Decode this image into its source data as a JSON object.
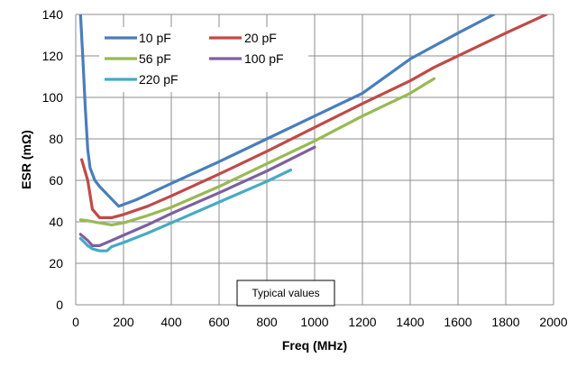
{
  "chart_data": {
    "type": "line",
    "title": "",
    "xlabel": "Freq (MHz)",
    "ylabel": "ESR (mΩ)",
    "xlim": [
      0,
      2000
    ],
    "ylim": [
      0,
      140
    ],
    "xticks": [
      0,
      200,
      400,
      600,
      800,
      1000,
      1200,
      1400,
      1600,
      1800,
      2000
    ],
    "yticks": [
      0,
      20,
      40,
      60,
      80,
      100,
      120,
      140
    ],
    "grid": true,
    "legend_position": "top-left",
    "annotation": "Typical values",
    "series": [
      {
        "name": "10 pF",
        "color": "#4a7ebb",
        "points": [
          [
            20,
            140
          ],
          [
            30,
            118
          ],
          [
            40,
            95
          ],
          [
            50,
            75
          ],
          [
            60,
            66
          ],
          [
            80,
            60
          ],
          [
            100,
            57
          ],
          [
            150,
            51
          ],
          [
            180,
            47.5
          ],
          [
            250,
            50.5
          ],
          [
            400,
            58.5
          ],
          [
            600,
            69
          ],
          [
            800,
            80
          ],
          [
            1000,
            91
          ],
          [
            1200,
            102
          ],
          [
            1400,
            118.5
          ],
          [
            1600,
            131
          ],
          [
            1750,
            140
          ]
        ]
      },
      {
        "name": "20 pF",
        "color": "#be4b48",
        "points": [
          [
            25,
            70
          ],
          [
            50,
            60
          ],
          [
            70,
            46
          ],
          [
            100,
            42
          ],
          [
            150,
            42
          ],
          [
            200,
            43.5
          ],
          [
            300,
            47.5
          ],
          [
            400,
            52.5
          ],
          [
            600,
            63
          ],
          [
            800,
            74
          ],
          [
            1000,
            85.5
          ],
          [
            1200,
            97
          ],
          [
            1400,
            108
          ],
          [
            1500,
            114.5
          ],
          [
            1800,
            131
          ],
          [
            1970,
            140
          ]
        ]
      },
      {
        "name": "56 pF",
        "color": "#98b954",
        "points": [
          [
            20,
            41
          ],
          [
            50,
            40.5
          ],
          [
            100,
            39.5
          ],
          [
            150,
            38.5
          ],
          [
            200,
            39.5
          ],
          [
            300,
            43
          ],
          [
            400,
            47
          ],
          [
            600,
            57
          ],
          [
            800,
            68
          ],
          [
            1000,
            79
          ],
          [
            1200,
            91
          ],
          [
            1400,
            102
          ],
          [
            1500,
            109
          ]
        ]
      },
      {
        "name": "100 pF",
        "color": "#7d60a0",
        "points": [
          [
            20,
            34
          ],
          [
            50,
            31
          ],
          [
            70,
            28.5
          ],
          [
            100,
            28.5
          ],
          [
            150,
            31
          ],
          [
            200,
            33.5
          ],
          [
            300,
            38.5
          ],
          [
            400,
            44
          ],
          [
            600,
            54
          ],
          [
            800,
            64.5
          ],
          [
            1000,
            76
          ]
        ]
      },
      {
        "name": "220 pF",
        "color": "#46aac5",
        "points": [
          [
            20,
            32
          ],
          [
            50,
            28.5
          ],
          [
            70,
            27
          ],
          [
            100,
            26
          ],
          [
            130,
            26
          ],
          [
            150,
            28
          ],
          [
            200,
            30
          ],
          [
            300,
            34.5
          ],
          [
            400,
            39.5
          ],
          [
            600,
            49.5
          ],
          [
            800,
            59.5
          ],
          [
            900,
            65
          ]
        ]
      }
    ]
  }
}
